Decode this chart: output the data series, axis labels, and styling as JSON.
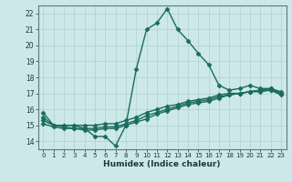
{
  "title": "",
  "xlabel": "Humidex (Indice chaleur)",
  "xlim": [
    -0.5,
    23.5
  ],
  "ylim": [
    13.5,
    22.5
  ],
  "yticks": [
    14,
    15,
    16,
    17,
    18,
    19,
    20,
    21,
    22
  ],
  "xticks": [
    0,
    1,
    2,
    3,
    4,
    5,
    6,
    7,
    8,
    9,
    10,
    11,
    12,
    13,
    14,
    15,
    16,
    17,
    18,
    19,
    20,
    21,
    22,
    23
  ],
  "bg_color": "#cce8e8",
  "grid_color": "#b0d0d0",
  "line_color": "#1a6b60",
  "line_width": 1.0,
  "marker": "D",
  "marker_size": 2.5,
  "lines": [
    [
      15.8,
      15.0,
      15.0,
      15.0,
      14.8,
      14.3,
      14.3,
      13.7,
      15.0,
      18.5,
      21.0,
      21.4,
      22.3,
      21.0,
      20.3,
      19.5,
      18.8,
      17.5,
      17.2,
      17.3,
      17.5,
      17.3,
      17.3,
      17.1
    ],
    [
      15.5,
      15.0,
      15.0,
      15.0,
      15.0,
      15.0,
      15.1,
      15.1,
      15.3,
      15.5,
      15.8,
      16.0,
      16.2,
      16.3,
      16.5,
      16.6,
      16.7,
      16.9,
      17.0,
      17.0,
      17.1,
      17.2,
      17.3,
      17.0
    ],
    [
      15.3,
      15.0,
      14.9,
      14.8,
      14.8,
      14.8,
      14.9,
      14.9,
      15.1,
      15.3,
      15.6,
      15.8,
      16.0,
      16.2,
      16.4,
      16.5,
      16.6,
      16.8,
      16.9,
      17.0,
      17.1,
      17.2,
      17.2,
      17.0
    ],
    [
      15.1,
      14.9,
      14.8,
      14.8,
      14.7,
      14.7,
      14.8,
      14.8,
      15.0,
      15.2,
      15.4,
      15.7,
      15.9,
      16.1,
      16.3,
      16.4,
      16.5,
      16.7,
      16.9,
      17.0,
      17.1,
      17.1,
      17.2,
      16.9
    ]
  ]
}
